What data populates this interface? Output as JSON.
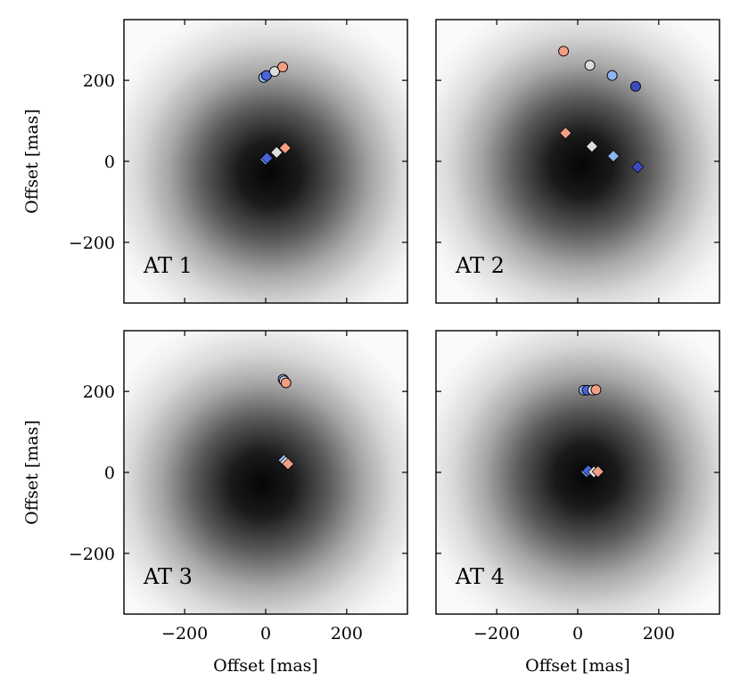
{
  "chart_data": {
    "type": "scatter",
    "layout": "2x2 grid",
    "xlabel": "Offset [mas]",
    "ylabel": "Offset [mas]",
    "xlim": [
      -350,
      350
    ],
    "ylim": [
      -350,
      350
    ],
    "xticks": [
      -200,
      0,
      200
    ],
    "yticks": [
      -200,
      0,
      200
    ],
    "xtick_labels": [
      "−200",
      "0",
      "200"
    ],
    "ytick_labels": [
      "−200",
      "0",
      "200"
    ],
    "background": "radial grayscale intensity map, darkest at center",
    "panels": [
      {
        "title": "AT 1",
        "center": [
          10,
          -30
        ],
        "circles": [
          {
            "x": -5,
            "y": 207,
            "color": "#8fb4f2"
          },
          {
            "x": 2,
            "y": 212,
            "color": "#4b64d8"
          },
          {
            "x": 22,
            "y": 222,
            "color": "#dddddd"
          },
          {
            "x": 42,
            "y": 233,
            "color": "#f29e85"
          }
        ],
        "diamonds": [
          {
            "x": 0,
            "y": 5,
            "color": "#8fb4f2"
          },
          {
            "x": 3,
            "y": 8,
            "color": "#4b64d8"
          },
          {
            "x": 27,
            "y": 22,
            "color": "#dddddd"
          },
          {
            "x": 48,
            "y": 33,
            "color": "#f29e85"
          }
        ]
      },
      {
        "title": "AT 2",
        "center": [
          10,
          -10
        ],
        "circles": [
          {
            "x": -35,
            "y": 272,
            "color": "#f29e85"
          },
          {
            "x": 30,
            "y": 237,
            "color": "#dddddd"
          },
          {
            "x": 85,
            "y": 212,
            "color": "#8fb4f2"
          },
          {
            "x": 143,
            "y": 185,
            "color": "#3c4dc0"
          }
        ],
        "diamonds": [
          {
            "x": -30,
            "y": 70,
            "color": "#f29e85"
          },
          {
            "x": 35,
            "y": 37,
            "color": "#dddddd"
          },
          {
            "x": 88,
            "y": 13,
            "color": "#8fb4f2"
          },
          {
            "x": 148,
            "y": -14,
            "color": "#3c4dc0"
          }
        ]
      },
      {
        "title": "AT 3",
        "center": [
          -10,
          -30
        ],
        "circles": [
          {
            "x": 43,
            "y": 230,
            "color": "#8fb4f2"
          },
          {
            "x": 46,
            "y": 226,
            "color": "#dddddd"
          },
          {
            "x": 50,
            "y": 221,
            "color": "#f29e85"
          }
        ],
        "diamonds": [
          {
            "x": 45,
            "y": 30,
            "color": "#8fb4f2"
          },
          {
            "x": 50,
            "y": 25,
            "color": "#dddddd"
          },
          {
            "x": 55,
            "y": 21,
            "color": "#f29e85"
          }
        ]
      },
      {
        "title": "AT 4",
        "center": [
          20,
          -10
        ],
        "circles": [
          {
            "x": 15,
            "y": 203,
            "color": "#8fb4f2"
          },
          {
            "x": 23,
            "y": 203,
            "color": "#4b64d8"
          },
          {
            "x": 37,
            "y": 203,
            "color": "#dddddd"
          },
          {
            "x": 45,
            "y": 204,
            "color": "#f29e85"
          }
        ],
        "diamonds": [
          {
            "x": 22,
            "y": 2,
            "color": "#8fb4f2"
          },
          {
            "x": 26,
            "y": 4,
            "color": "#4b64d8"
          },
          {
            "x": 40,
            "y": 1,
            "color": "#dddddd"
          },
          {
            "x": 50,
            "y": 2,
            "color": "#f29e85"
          }
        ]
      }
    ]
  }
}
